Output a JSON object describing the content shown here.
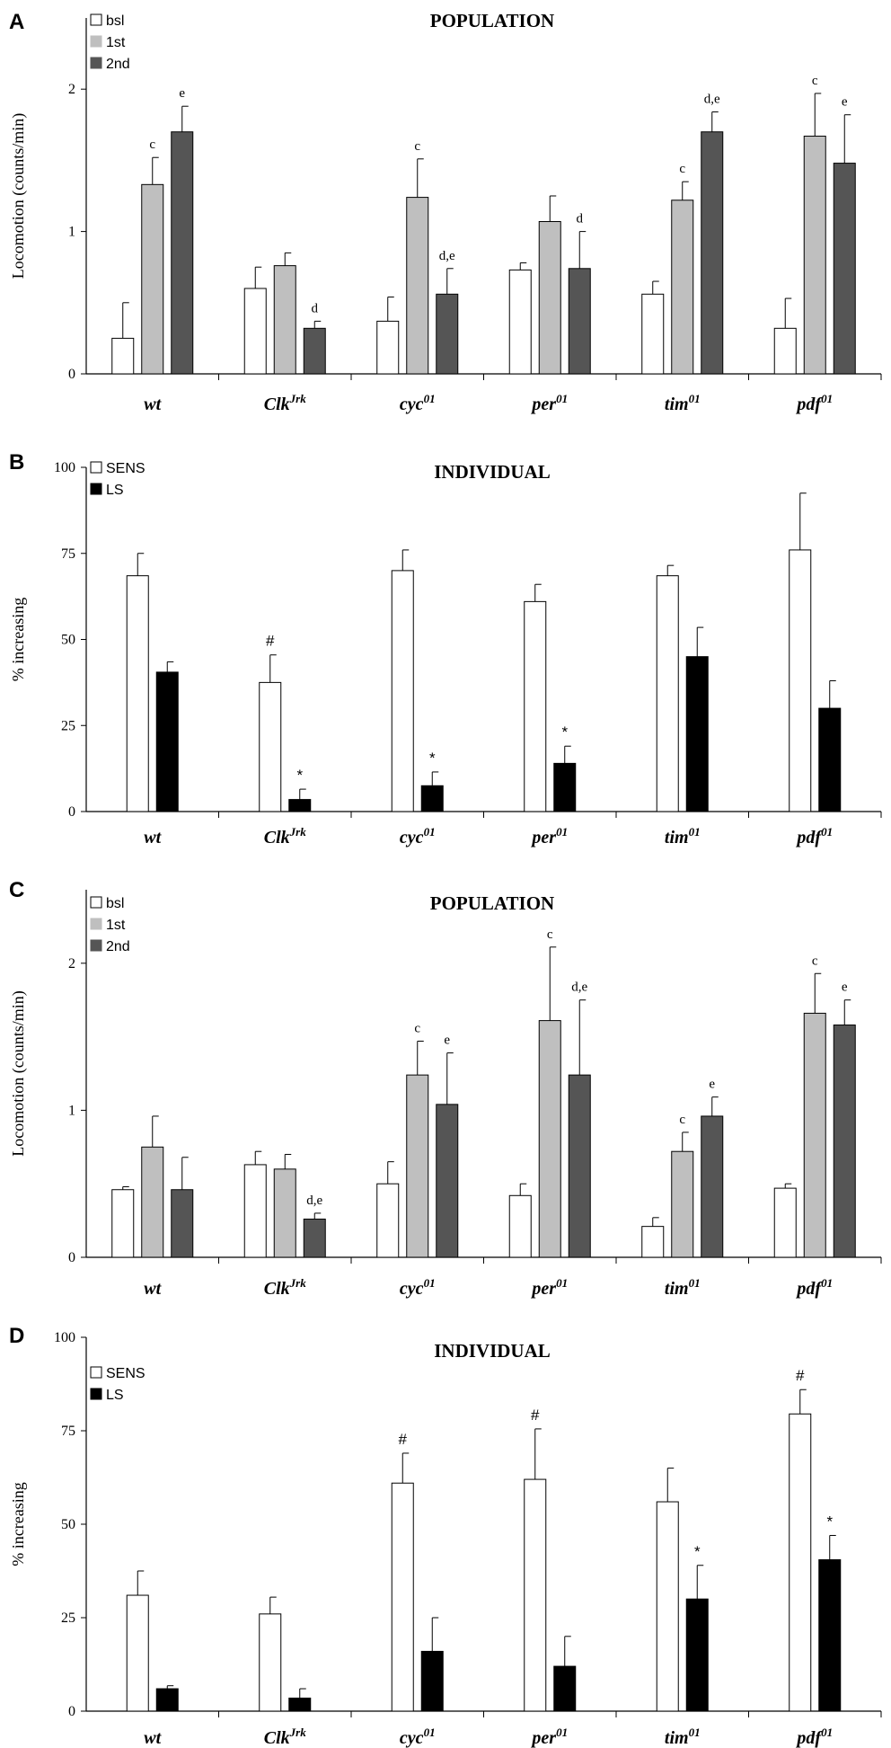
{
  "figure": {
    "description_free": true
  },
  "chart_data": [
    {
      "panel": "A",
      "type": "bar",
      "title": "POPULATION",
      "ylabel": "Locomotion (counts/min)",
      "xlabel": "",
      "ylim": [
        0,
        2.5
      ],
      "yticks": [
        0,
        1,
        2
      ],
      "grid": false,
      "legend_position": "top-left",
      "categories": [
        {
          "base": "wt",
          "sup": ""
        },
        {
          "base": "Clk",
          "sup": "Jrk"
        },
        {
          "base": "cyc",
          "sup": "01"
        },
        {
          "base": "per",
          "sup": "01"
        },
        {
          "base": "tim",
          "sup": "01"
        },
        {
          "base": "pdf",
          "sup": "01"
        }
      ],
      "series": [
        {
          "name": "bsl",
          "color": "#ffffff",
          "values": [
            0.25,
            0.6,
            0.37,
            0.73,
            0.56,
            0.32
          ],
          "errors": [
            0.25,
            0.15,
            0.17,
            0.05,
            0.09,
            0.21
          ],
          "annotations": [
            "",
            "",
            "",
            "",
            "",
            ""
          ]
        },
        {
          "name": "1st",
          "color": "#bfbfbf",
          "values": [
            1.33,
            0.76,
            1.24,
            1.07,
            1.22,
            1.67
          ],
          "errors": [
            0.19,
            0.09,
            0.27,
            0.18,
            0.13,
            0.3
          ],
          "annotations": [
            "c",
            "",
            "c",
            "",
            "c",
            "c"
          ]
        },
        {
          "name": "2nd",
          "color": "#555555",
          "values": [
            1.7,
            0.32,
            0.56,
            0.74,
            1.7,
            1.48
          ],
          "errors": [
            0.18,
            0.05,
            0.18,
            0.26,
            0.14,
            0.34
          ],
          "annotations": [
            "e",
            "d",
            "d,e",
            "d",
            "d,e",
            "e"
          ]
        }
      ]
    },
    {
      "panel": "B",
      "type": "bar",
      "title": "INDIVIDUAL",
      "ylabel": "% increasing",
      "xlabel": "",
      "ylim": [
        0,
        100
      ],
      "yticks": [
        0,
        25,
        50,
        75,
        100
      ],
      "grid": false,
      "legend_position": "top-left",
      "categories": [
        {
          "base": "wt",
          "sup": ""
        },
        {
          "base": "Clk",
          "sup": "Jrk"
        },
        {
          "base": "cyc",
          "sup": "01"
        },
        {
          "base": "per",
          "sup": "01"
        },
        {
          "base": "tim",
          "sup": "01"
        },
        {
          "base": "pdf",
          "sup": "01"
        }
      ],
      "series": [
        {
          "name": "SENS",
          "color": "#ffffff",
          "values": [
            68.5,
            37.5,
            70,
            61,
            68.5,
            76
          ],
          "errors": [
            6.5,
            8,
            6,
            5,
            3,
            16.5
          ],
          "annotations": [
            "",
            "#",
            "",
            "",
            "",
            ""
          ]
        },
        {
          "name": "LS",
          "color": "#000000",
          "values": [
            40.5,
            3.5,
            7.5,
            14,
            45,
            30
          ],
          "errors": [
            3,
            3,
            4,
            5,
            8.5,
            8
          ],
          "annotations": [
            "",
            "*",
            "*",
            "*",
            "",
            ""
          ]
        }
      ]
    },
    {
      "panel": "C",
      "type": "bar",
      "title": "POPULATION",
      "ylabel": "Locomotion (counts/min)",
      "xlabel": "",
      "ylim": [
        0,
        2.5
      ],
      "yticks": [
        0,
        1,
        2
      ],
      "grid": false,
      "legend_position": "top-left",
      "categories": [
        {
          "base": "wt",
          "sup": ""
        },
        {
          "base": "Clk",
          "sup": "Jrk"
        },
        {
          "base": "cyc",
          "sup": "01"
        },
        {
          "base": "per",
          "sup": "01"
        },
        {
          "base": "tim",
          "sup": "01"
        },
        {
          "base": "pdf",
          "sup": "01"
        }
      ],
      "series": [
        {
          "name": "bsl",
          "color": "#ffffff",
          "values": [
            0.46,
            0.63,
            0.5,
            0.42,
            0.21,
            0.47
          ],
          "errors": [
            0.02,
            0.09,
            0.15,
            0.08,
            0.06,
            0.03
          ],
          "annotations": [
            "",
            "",
            "",
            "",
            "",
            ""
          ]
        },
        {
          "name": "1st",
          "color": "#bfbfbf",
          "values": [
            0.75,
            0.6,
            1.24,
            1.61,
            0.72,
            1.66
          ],
          "errors": [
            0.21,
            0.1,
            0.23,
            0.5,
            0.13,
            0.27
          ],
          "annotations": [
            "",
            "",
            "c",
            "c",
            "c",
            "c"
          ]
        },
        {
          "name": "2nd",
          "color": "#555555",
          "values": [
            0.46,
            0.26,
            1.04,
            1.24,
            0.96,
            1.58
          ],
          "errors": [
            0.22,
            0.04,
            0.35,
            0.51,
            0.13,
            0.17
          ],
          "annotations": [
            "",
            "d,e",
            "e",
            "d,e",
            "e",
            "e"
          ]
        }
      ]
    },
    {
      "panel": "D",
      "type": "bar",
      "title": "INDIVIDUAL",
      "ylabel": "% increasing",
      "xlabel": "",
      "ylim": [
        0,
        100
      ],
      "yticks": [
        0,
        25,
        50,
        75,
        100
      ],
      "grid": false,
      "legend_position": "top-left",
      "categories": [
        {
          "base": "wt",
          "sup": ""
        },
        {
          "base": "Clk",
          "sup": "Jrk"
        },
        {
          "base": "cyc",
          "sup": "01"
        },
        {
          "base": "per",
          "sup": "01"
        },
        {
          "base": "tim",
          "sup": "01"
        },
        {
          "base": "pdf",
          "sup": "01"
        }
      ],
      "series": [
        {
          "name": "SENS",
          "color": "#ffffff",
          "values": [
            31,
            26,
            61,
            62,
            56,
            79.5
          ],
          "errors": [
            6.5,
            4.5,
            8,
            13.5,
            9,
            6.5
          ],
          "annotations": [
            "",
            "",
            "#",
            "#",
            "",
            "#"
          ]
        },
        {
          "name": "LS",
          "color": "#000000",
          "values": [
            6,
            3.5,
            16,
            12,
            30,
            40.5
          ],
          "errors": [
            0.8,
            2.5,
            9,
            8,
            9,
            6.5
          ],
          "annotations": [
            "",
            "",
            "",
            "",
            "*",
            "*"
          ]
        }
      ]
    }
  ]
}
